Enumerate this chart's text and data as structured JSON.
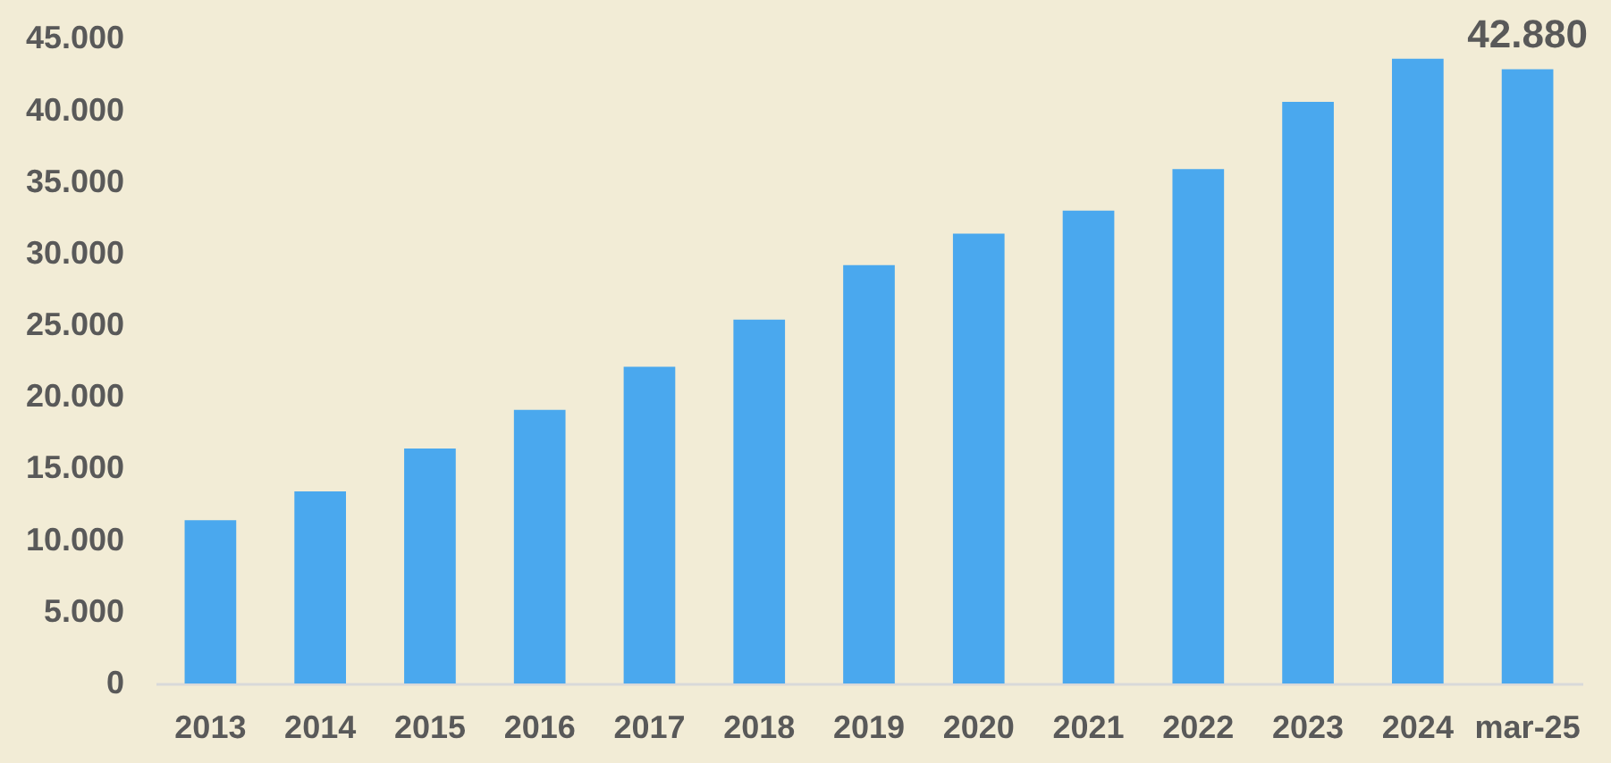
{
  "chart_data": {
    "type": "bar",
    "categories": [
      "2013",
      "2014",
      "2015",
      "2016",
      "2017",
      "2018",
      "2019",
      "2020",
      "2021",
      "2022",
      "2023",
      "2024",
      "mar-25"
    ],
    "values": [
      11400,
      13400,
      16400,
      19100,
      22100,
      25400,
      29200,
      31400,
      33000,
      35900,
      40600,
      43600,
      42880
    ],
    "color": "#4aa8ee",
    "ylim": [
      0,
      45000
    ],
    "yticks": [
      0,
      {
        "value": 5000,
        "label": "5.000"
      },
      {
        "value": 10000,
        "label": "10.000"
      },
      {
        "value": 15000,
        "label": "15.000"
      },
      {
        "value": 20000,
        "label": "20.000"
      },
      {
        "value": 25000,
        "label": "25.000"
      },
      {
        "value": 30000,
        "label": "30.000"
      },
      {
        "value": 35000,
        "label": "35.000"
      },
      {
        "value": 40000,
        "label": "40.000"
      },
      {
        "value": 45000,
        "label": "45.000"
      }
    ],
    "value_labels": [
      null,
      null,
      null,
      null,
      null,
      null,
      null,
      null,
      null,
      null,
      null,
      null,
      "42.880"
    ]
  }
}
